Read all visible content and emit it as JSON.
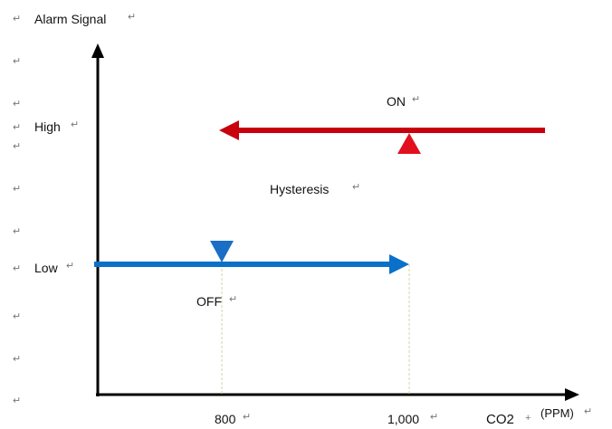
{
  "labels": {
    "y_axis_title": "Alarm Signal",
    "high": "High",
    "low": "Low",
    "on": "ON",
    "off": "OFF",
    "hysteresis": "Hysteresis",
    "x_tick_low": "800",
    "x_tick_high": "1,000",
    "x_axis_title": "CO2",
    "x_axis_unit": "(PPM)"
  },
  "paragraph_mark": "↵",
  "colors": {
    "on_line": "#c8000e",
    "off_line": "#0a70c8",
    "rise_dash_top": "#e8213a",
    "rise_dash_bottom": "#2070c8",
    "axis": "#000000",
    "guide": "#d8d0a8"
  }
}
